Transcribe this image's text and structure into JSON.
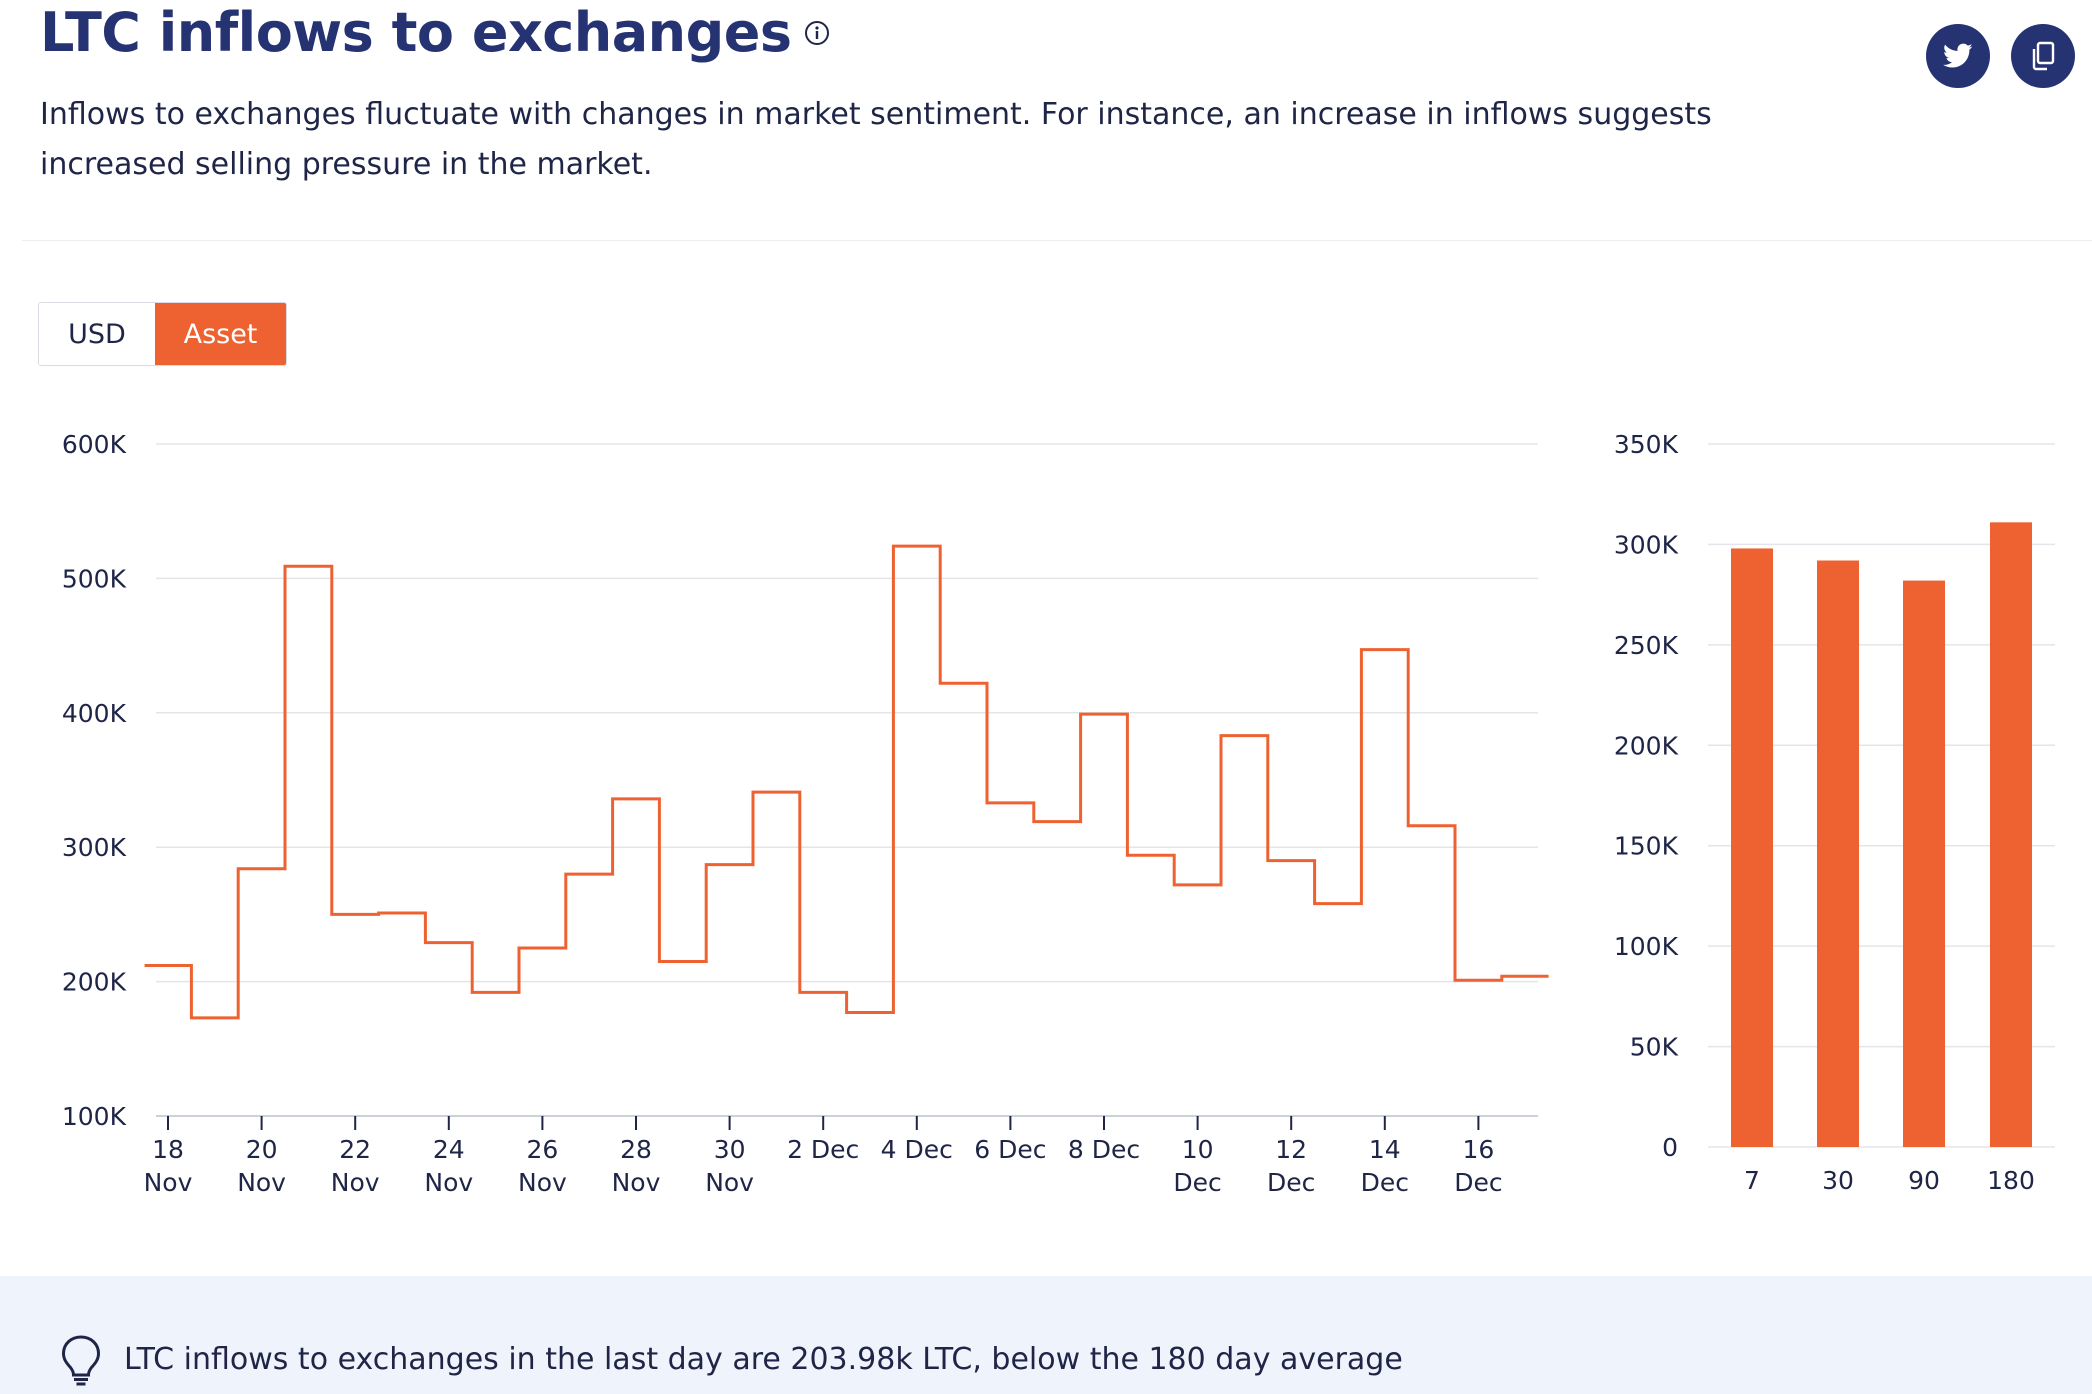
{
  "header": {
    "title": "LTC inflows to exchanges",
    "info_icon": "info-icon",
    "description": "Inflows to exchanges fluctuate with changes in market sentiment. For instance, an increase in inflows suggests increased selling pressure in the market.",
    "share": [
      {
        "icon": "twitter-icon"
      },
      {
        "icon": "copy-icon"
      }
    ]
  },
  "toggle": {
    "options": [
      "USD",
      "Asset"
    ],
    "selected": "Asset"
  },
  "colors": {
    "accent": "#ed6230",
    "navy": "#263373",
    "grid": "#e3e5ea",
    "insight_bg": "#eff3fb"
  },
  "chart_data": [
    {
      "type": "line",
      "step": true,
      "x": [
        "18 Nov",
        "19 Nov",
        "20 Nov",
        "21 Nov",
        "22 Nov",
        "23 Nov",
        "24 Nov",
        "25 Nov",
        "26 Nov",
        "27 Nov",
        "28 Nov",
        "29 Nov",
        "30 Nov",
        "1 Dec",
        "2 Dec",
        "3 Dec",
        "4 Dec",
        "5 Dec",
        "6 Dec",
        "7 Dec",
        "8 Dec",
        "9 Dec",
        "10 Dec",
        "11 Dec",
        "12 Dec",
        "13 Dec",
        "14 Dec",
        "15 Dec",
        "16 Dec",
        "17 Dec"
      ],
      "series": [
        {
          "values": [
            212000,
            173000,
            284000,
            509000,
            250000,
            251000,
            229000,
            192000,
            225000,
            280000,
            336000,
            215000,
            287000,
            341000,
            192000,
            177000,
            524000,
            422000,
            333000,
            319000,
            399000,
            294000,
            272000,
            383000,
            290000,
            258000,
            447000,
            316000,
            201000,
            204000
          ]
        }
      ],
      "ylim": [
        100000,
        600000
      ],
      "yticks": [
        "100K",
        "200K",
        "300K",
        "400K",
        "500K",
        "600K"
      ],
      "xticks": [
        {
          "l1": "18",
          "l2": "Nov"
        },
        {
          "l1": "20",
          "l2": "Nov"
        },
        {
          "l1": "22",
          "l2": "Nov"
        },
        {
          "l1": "24",
          "l2": "Nov"
        },
        {
          "l1": "26",
          "l2": "Nov"
        },
        {
          "l1": "28",
          "l2": "Nov"
        },
        {
          "l1": "30",
          "l2": "Nov"
        },
        {
          "l1": "2 Dec",
          "l2": ""
        },
        {
          "l1": "4 Dec",
          "l2": ""
        },
        {
          "l1": "6 Dec",
          "l2": ""
        },
        {
          "l1": "8 Dec",
          "l2": ""
        },
        {
          "l1": "10",
          "l2": "Dec"
        },
        {
          "l1": "12",
          "l2": "Dec"
        },
        {
          "l1": "14",
          "l2": "Dec"
        },
        {
          "l1": "16",
          "l2": "Dec"
        }
      ],
      "grid": true
    },
    {
      "type": "bar",
      "categories": [
        "7",
        "30",
        "90",
        "180"
      ],
      "values": [
        298000,
        292000,
        282000,
        311000
      ],
      "ylim": [
        0,
        350000
      ],
      "yticks": [
        "0",
        "50K",
        "100K",
        "150K",
        "200K",
        "250K",
        "300K",
        "350K"
      ],
      "grid": true
    }
  ],
  "insight": {
    "icon": "lightbulb-icon",
    "text": "LTC inflows to exchanges in the last day are 203.98k LTC, below the 180 day average"
  }
}
